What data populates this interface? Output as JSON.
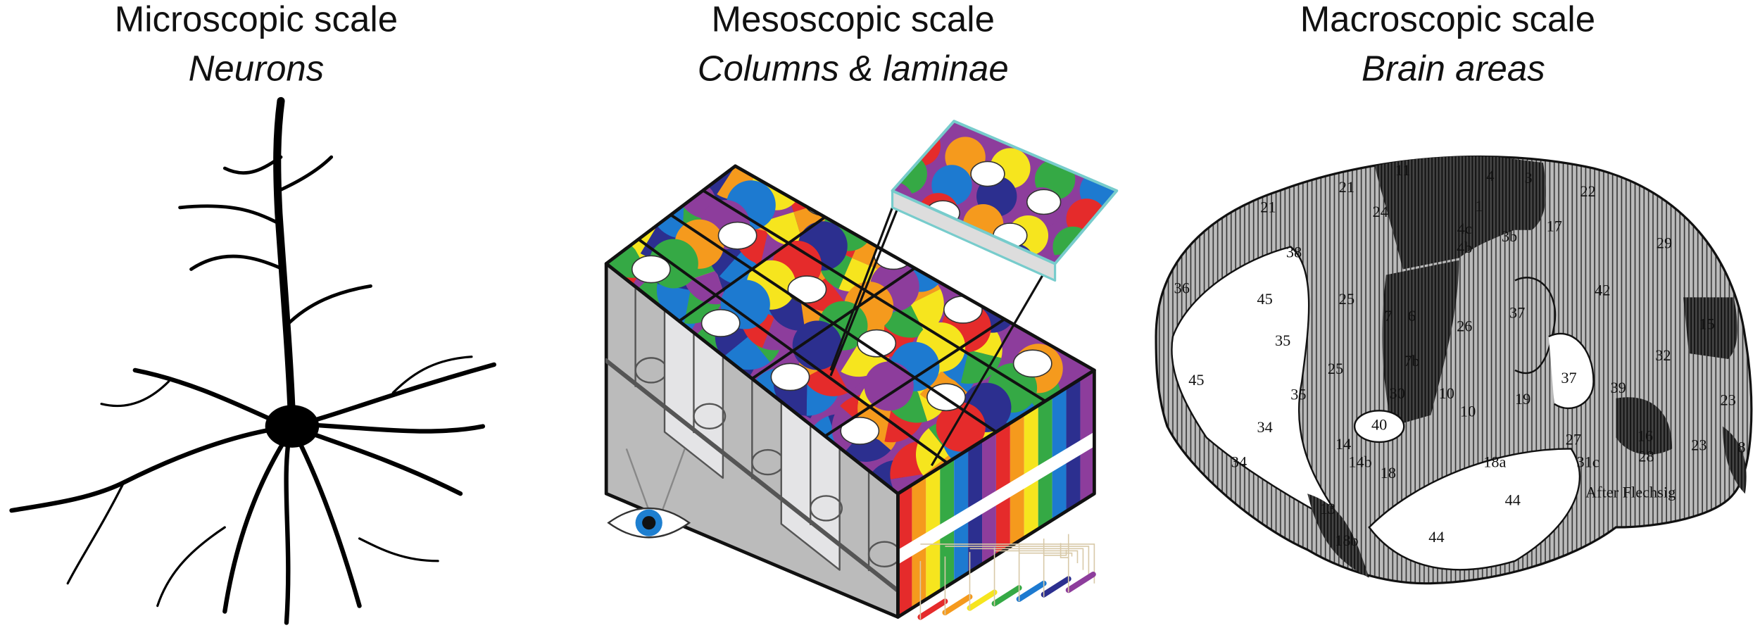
{
  "panels": [
    {
      "title": "Microscopic scale",
      "subtitle": "Neurons"
    },
    {
      "title": "Mesoscopic scale",
      "subtitle": "Columns & laminae"
    },
    {
      "title": "Macroscopic scale",
      "subtitle": "Brain areas"
    }
  ],
  "brain_labels": [
    "21",
    "11",
    "4",
    "3",
    "22",
    "1",
    "24",
    "4c",
    "4b",
    "3b",
    "17",
    "29",
    "21",
    "38",
    "36",
    "45",
    "25",
    "7",
    "6",
    "26",
    "37",
    "42",
    "15",
    "35",
    "32",
    "45",
    "7b",
    "25",
    "37",
    "35",
    "30",
    "10",
    "19",
    "39",
    "16",
    "23",
    "34",
    "40",
    "10",
    "14",
    "27",
    "23",
    "8",
    "34",
    "14b",
    "18",
    "18a",
    "31c",
    "28",
    "44",
    "13",
    "44",
    "18b",
    "After Flechsig"
  ]
}
